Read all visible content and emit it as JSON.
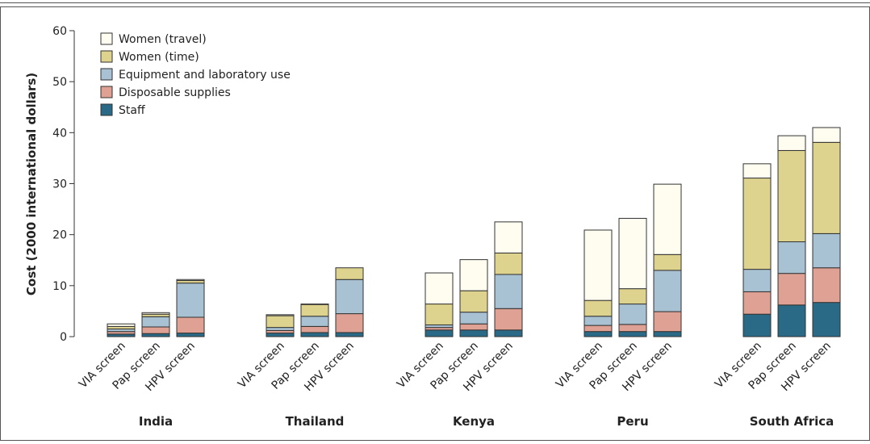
{
  "chart_data": {
    "type": "stacked-bar",
    "ylabel": "Cost (2000 international dollars)",
    "groups": [
      "India",
      "Thailand",
      "Kenya",
      "Peru",
      "South Africa"
    ],
    "categories": [
      "VIA screen",
      "Pap screen",
      "HPV screen"
    ],
    "ylim": [
      0,
      60
    ],
    "yticks": [
      0,
      10,
      20,
      30,
      40,
      50,
      60
    ],
    "grid": false,
    "legend": "top-left",
    "series": [
      {
        "name": "Staff",
        "color": "#2b6a86",
        "values": [
          [
            0.5,
            0.6,
            0.7
          ],
          [
            0.7,
            0.8,
            0.8
          ],
          [
            1.3,
            1.3,
            1.3
          ],
          [
            1.0,
            1.0,
            1.0
          ],
          [
            4.4,
            6.2,
            6.7
          ]
        ]
      },
      {
        "name": "Disposable supplies",
        "color": "#dfa193",
        "values": [
          [
            0.5,
            1.3,
            3.1
          ],
          [
            0.5,
            1.2,
            3.7
          ],
          [
            0.5,
            1.2,
            4.2
          ],
          [
            1.2,
            1.4,
            3.9
          ],
          [
            4.4,
            6.2,
            6.8
          ]
        ]
      },
      {
        "name": "Equipment and laboratory use",
        "color": "#a9c2d3",
        "values": [
          [
            0.5,
            2.0,
            6.7
          ],
          [
            0.6,
            2.0,
            6.7
          ],
          [
            0.5,
            2.3,
            6.7
          ],
          [
            1.8,
            4.0,
            8.1
          ],
          [
            4.4,
            6.2,
            6.7
          ]
        ]
      },
      {
        "name": "Women (time)",
        "color": "#ddd28e",
        "values": [
          [
            0.5,
            0.5,
            0.5
          ],
          [
            2.3,
            2.3,
            2.3
          ],
          [
            4.1,
            4.2,
            4.2
          ],
          [
            3.1,
            3.0,
            3.1
          ],
          [
            17.9,
            17.9,
            17.9
          ]
        ]
      },
      {
        "name": "Women (travel)",
        "color": "#fffdf0",
        "values": [
          [
            0.5,
            0.3,
            0.2
          ],
          [
            0.2,
            0.1,
            0.0
          ],
          [
            6.1,
            6.1,
            6.1
          ],
          [
            13.8,
            13.8,
            13.8
          ],
          [
            2.8,
            2.9,
            2.9
          ]
        ]
      }
    ]
  }
}
